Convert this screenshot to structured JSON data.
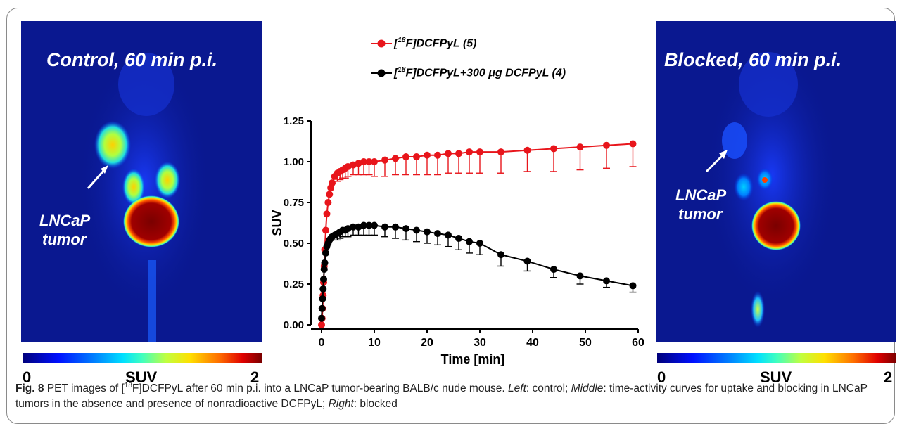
{
  "left_panel": {
    "title": "Control, 60 min p.i.",
    "tumor_label_line1": "LNCaP",
    "tumor_label_line2": "tumor",
    "colorbar": {
      "min_label": "0",
      "mid_label": "SUV",
      "max_label": "2"
    }
  },
  "right_panel": {
    "title": "Blocked, 60 min p.i.",
    "tumor_label_line1": "LNCaP",
    "tumor_label_line2": "tumor",
    "colorbar": {
      "min_label": "0",
      "mid_label": "SUV",
      "max_label": "2"
    }
  },
  "legend": {
    "series1_prefix": "[",
    "series1_sup": "18",
    "series1_suffix": "F]DCFPyL (5)",
    "series2_prefix": "[",
    "series2_sup": "18",
    "series2_suffix": "F]DCFPyL+300 μg DCFPyL (4)"
  },
  "caption": {
    "label": "Fig. 8",
    "text_part1": " PET images of [",
    "sup": "18",
    "text_part2": "F]DCFPyL after 60 min p.i. into a LNCaP tumor-bearing BALB/c nude mouse. ",
    "left_word": "Left",
    "text_part3": ": control; ",
    "middle_word": "Middle",
    "text_part4": ": time-activity curves for uptake and blocking in LNCaP tumors in the absence and presence of nonradioactive DCFPyL; ",
    "right_word": "Right",
    "text_part5": ": blocked"
  },
  "colors": {
    "series1": "#e8151b",
    "series2": "#000000",
    "pet_background": "#0a1890"
  },
  "chart_data": {
    "type": "line",
    "xlabel": "Time [min]",
    "ylabel": "SUV",
    "xlim": [
      -2,
      62
    ],
    "ylim": [
      0,
      1.25
    ],
    "xticks": [
      0,
      10,
      20,
      30,
      40,
      50,
      60
    ],
    "yticks": [
      0.0,
      0.25,
      0.5,
      0.75,
      1.0,
      1.25
    ],
    "ytick_labels": [
      "0.00",
      "0.25",
      "0.50",
      "0.75",
      "1.00",
      "1.25"
    ],
    "xtick_labels": [
      "0",
      "10",
      "20",
      "30",
      "40",
      "50",
      "60"
    ],
    "series": [
      {
        "name": "[18F]DCFPyL (5)",
        "color": "#e8151b",
        "x": [
          0,
          0.1,
          0.2,
          0.3,
          0.4,
          0.5,
          0.6,
          0.8,
          1.0,
          1.25,
          1.5,
          1.75,
          2.0,
          2.5,
          3.0,
          3.5,
          4.0,
          4.5,
          5.0,
          6.0,
          7.0,
          8.0,
          9.0,
          10,
          12,
          14,
          16,
          18,
          20,
          22,
          24,
          26,
          28,
          30,
          34,
          39,
          44,
          49,
          54,
          59
        ],
        "y": [
          0.0,
          0.04,
          0.1,
          0.18,
          0.26,
          0.36,
          0.46,
          0.58,
          0.68,
          0.75,
          0.8,
          0.84,
          0.87,
          0.91,
          0.93,
          0.94,
          0.95,
          0.96,
          0.97,
          0.98,
          0.99,
          1.0,
          1.0,
          1.0,
          1.01,
          1.02,
          1.03,
          1.03,
          1.04,
          1.04,
          1.05,
          1.05,
          1.06,
          1.06,
          1.06,
          1.07,
          1.08,
          1.09,
          1.1,
          1.11
        ],
        "err_low": [
          0,
          0,
          0,
          0,
          0,
          0,
          0,
          0,
          0,
          0,
          0,
          0,
          0,
          0,
          0.05,
          0.05,
          0.05,
          0.06,
          0.06,
          0.06,
          0.07,
          0.08,
          0.08,
          0.09,
          0.1,
          0.1,
          0.11,
          0.11,
          0.12,
          0.12,
          0.12,
          0.12,
          0.13,
          0.13,
          0.13,
          0.13,
          0.14,
          0.14,
          0.14,
          0.14
        ]
      },
      {
        "name": "[18F]DCFPyL+300 μg DCFPyL (4)",
        "color": "#000000",
        "x": [
          0,
          0.1,
          0.2,
          0.3,
          0.4,
          0.5,
          0.6,
          0.8,
          1.0,
          1.25,
          1.5,
          1.75,
          2.0,
          2.5,
          3.0,
          3.5,
          4.0,
          4.5,
          5.0,
          6.0,
          7.0,
          8.0,
          9.0,
          10,
          12,
          14,
          16,
          18,
          20,
          22,
          24,
          26,
          28,
          30,
          34,
          39,
          44,
          49,
          54,
          59
        ],
        "y": [
          0.04,
          0.1,
          0.16,
          0.22,
          0.28,
          0.34,
          0.38,
          0.44,
          0.48,
          0.5,
          0.52,
          0.53,
          0.54,
          0.55,
          0.56,
          0.57,
          0.58,
          0.58,
          0.59,
          0.6,
          0.6,
          0.61,
          0.61,
          0.61,
          0.6,
          0.6,
          0.59,
          0.58,
          0.57,
          0.56,
          0.55,
          0.53,
          0.51,
          0.5,
          0.43,
          0.39,
          0.34,
          0.3,
          0.27,
          0.24
        ],
        "err_low": [
          0,
          0,
          0,
          0,
          0,
          0,
          0,
          0,
          0,
          0,
          0,
          0,
          0,
          0,
          0.04,
          0.04,
          0.04,
          0.04,
          0.05,
          0.05,
          0.05,
          0.06,
          0.06,
          0.06,
          0.06,
          0.07,
          0.07,
          0.07,
          0.07,
          0.07,
          0.07,
          0.07,
          0.07,
          0.07,
          0.07,
          0.06,
          0.05,
          0.05,
          0.04,
          0.04
        ]
      }
    ]
  }
}
